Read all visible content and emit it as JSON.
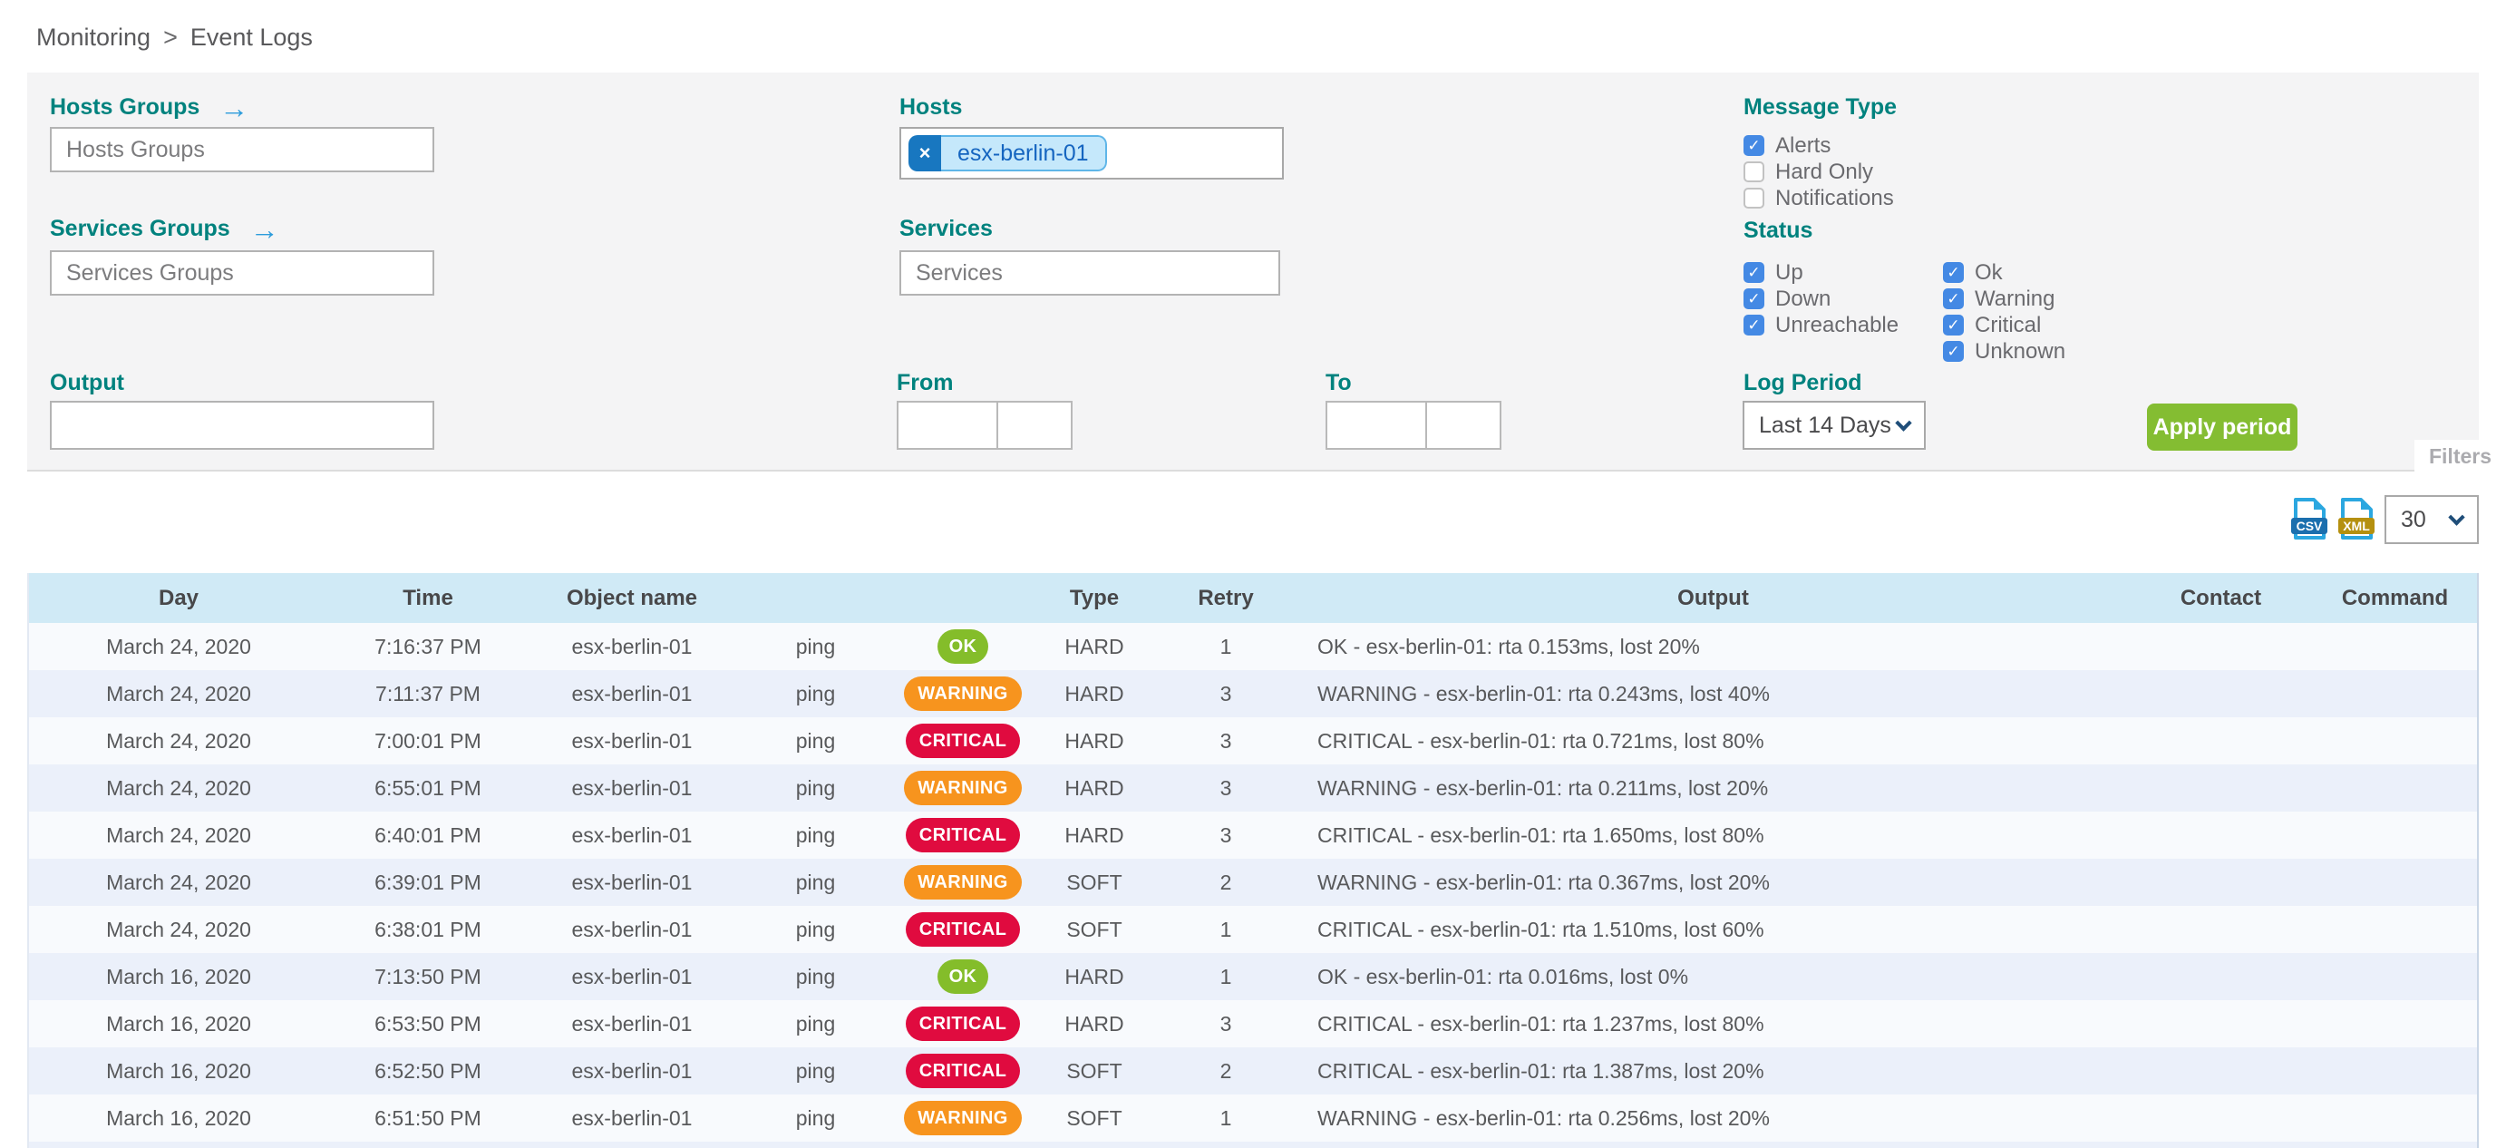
{
  "breadcrumb": {
    "items": [
      "Monitoring",
      "Event Logs"
    ],
    "separator": ">"
  },
  "icons": {
    "arrow_right": "→",
    "chip_remove": "×",
    "checkbox_check": "✓",
    "csv_file": "csv-file-icon",
    "xml_file": "xml-file-icon",
    "chevron": "chevron-down-icon"
  },
  "filters": {
    "hosts_groups": {
      "label": "Hosts Groups",
      "placeholder": "Hosts Groups",
      "value": ""
    },
    "services_groups": {
      "label": "Services Groups",
      "placeholder": "Services Groups",
      "value": ""
    },
    "hosts": {
      "label": "Hosts",
      "selected": [
        {
          "text": "esx-berlin-01"
        }
      ]
    },
    "services": {
      "label": "Services",
      "placeholder": "Services",
      "value": ""
    },
    "output": {
      "label": "Output",
      "value": ""
    },
    "from": {
      "label": "From",
      "date_value": "",
      "time_value": ""
    },
    "to": {
      "label": "To",
      "date_value": "",
      "time_value": ""
    },
    "message_type": {
      "label": "Message Type",
      "options": [
        {
          "label": "Alerts",
          "checked": true
        },
        {
          "label": "Hard Only",
          "checked": false
        },
        {
          "label": "Notifications",
          "checked": false
        }
      ]
    },
    "status": {
      "label": "Status",
      "columns": [
        [
          {
            "label": "Up",
            "checked": true
          },
          {
            "label": "Down",
            "checked": true
          },
          {
            "label": "Unreachable",
            "checked": true
          }
        ],
        [
          {
            "label": "Ok",
            "checked": true
          },
          {
            "label": "Warning",
            "checked": true
          },
          {
            "label": "Critical",
            "checked": true
          },
          {
            "label": "Unknown",
            "checked": true
          }
        ]
      ]
    },
    "log_period": {
      "label": "Log Period",
      "selected": "Last 14 Days"
    },
    "apply_button_label": "Apply period",
    "filters_tab_label": "Filters"
  },
  "toolbar": {
    "export_csv_label": "CSV",
    "export_xml_label": "XML",
    "rows_per_page": "30"
  },
  "table": {
    "headers": [
      "Day",
      "Time",
      "Object name",
      "",
      "",
      "Type",
      "Retry",
      "Output",
      "Contact",
      "Command"
    ],
    "rows": [
      {
        "day": "March 24, 2020",
        "time": "7:16:37 PM",
        "object_name": "esx-berlin-01",
        "service": "ping",
        "status": "OK",
        "state_type": "HARD",
        "retry": "1",
        "output": "OK - esx-berlin-01: rta 0.153ms, lost 20%",
        "contact": "",
        "command": ""
      },
      {
        "day": "March 24, 2020",
        "time": "7:11:37 PM",
        "object_name": "esx-berlin-01",
        "service": "ping",
        "status": "WARNING",
        "state_type": "HARD",
        "retry": "3",
        "output": "WARNING - esx-berlin-01: rta 0.243ms, lost 40%",
        "contact": "",
        "command": ""
      },
      {
        "day": "March 24, 2020",
        "time": "7:00:01 PM",
        "object_name": "esx-berlin-01",
        "service": "ping",
        "status": "CRITICAL",
        "state_type": "HARD",
        "retry": "3",
        "output": "CRITICAL - esx-berlin-01: rta 0.721ms, lost 80%",
        "contact": "",
        "command": ""
      },
      {
        "day": "March 24, 2020",
        "time": "6:55:01 PM",
        "object_name": "esx-berlin-01",
        "service": "ping",
        "status": "WARNING",
        "state_type": "HARD",
        "retry": "3",
        "output": "WARNING - esx-berlin-01: rta 0.211ms, lost 20%",
        "contact": "",
        "command": ""
      },
      {
        "day": "March 24, 2020",
        "time": "6:40:01 PM",
        "object_name": "esx-berlin-01",
        "service": "ping",
        "status": "CRITICAL",
        "state_type": "HARD",
        "retry": "3",
        "output": "CRITICAL - esx-berlin-01: rta 1.650ms, lost 80%",
        "contact": "",
        "command": ""
      },
      {
        "day": "March 24, 2020",
        "time": "6:39:01 PM",
        "object_name": "esx-berlin-01",
        "service": "ping",
        "status": "WARNING",
        "state_type": "SOFT",
        "retry": "2",
        "output": "WARNING - esx-berlin-01: rta 0.367ms, lost 20%",
        "contact": "",
        "command": ""
      },
      {
        "day": "March 24, 2020",
        "time": "6:38:01 PM",
        "object_name": "esx-berlin-01",
        "service": "ping",
        "status": "CRITICAL",
        "state_type": "SOFT",
        "retry": "1",
        "output": "CRITICAL - esx-berlin-01: rta 1.510ms, lost 60%",
        "contact": "",
        "command": ""
      },
      {
        "day": "March 16, 2020",
        "time": "7:13:50 PM",
        "object_name": "esx-berlin-01",
        "service": "ping",
        "status": "OK",
        "state_type": "HARD",
        "retry": "1",
        "output": "OK - esx-berlin-01: rta 0.016ms, lost 0%",
        "contact": "",
        "command": ""
      },
      {
        "day": "March 16, 2020",
        "time": "6:53:50 PM",
        "object_name": "esx-berlin-01",
        "service": "ping",
        "status": "CRITICAL",
        "state_type": "HARD",
        "retry": "3",
        "output": "CRITICAL - esx-berlin-01: rta 1.237ms, lost 80%",
        "contact": "",
        "command": ""
      },
      {
        "day": "March 16, 2020",
        "time": "6:52:50 PM",
        "object_name": "esx-berlin-01",
        "service": "ping",
        "status": "CRITICAL",
        "state_type": "SOFT",
        "retry": "2",
        "output": "CRITICAL - esx-berlin-01: rta 1.387ms, lost 20%",
        "contact": "",
        "command": ""
      },
      {
        "day": "March 16, 2020",
        "time": "6:51:50 PM",
        "object_name": "esx-berlin-01",
        "service": "ping",
        "status": "WARNING",
        "state_type": "SOFT",
        "retry": "1",
        "output": "WARNING - esx-berlin-01: rta 0.256ms, lost 20%",
        "contact": "",
        "command": ""
      }
    ]
  },
  "colors": {
    "accent_teal": "#00827E",
    "checkbox_blue": "#4489E4",
    "chip_blue": "#1877C0",
    "chip_bg": "#C5E8FB",
    "button_green": "#84BD32",
    "status_ok": "#84BD2A",
    "status_warning": "#F7941E",
    "status_critical": "#E00B3F",
    "table_header_bg": "#D0EAF6",
    "row_alt_bg": "#EBF0FA",
    "panel_bg": "#F4F4F5",
    "csv_band": "#1B6FAE",
    "xml_band": "#B5900F",
    "file_icon_blue": "#2BA7E0"
  }
}
